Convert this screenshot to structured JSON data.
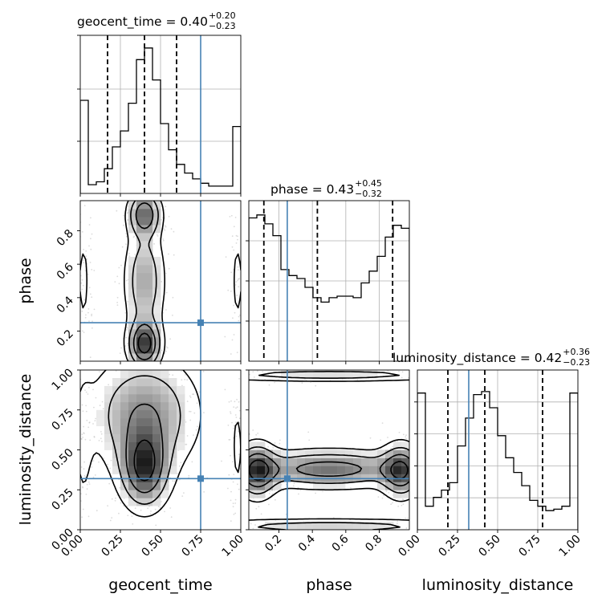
{
  "chart_data": {
    "type": "corner",
    "parameters": [
      "geocent_time",
      "phase",
      "luminosity_distance"
    ],
    "truths": {
      "geocent_time": 0.75,
      "phase": 0.25,
      "luminosity_distance": 0.32
    },
    "titles": {
      "geocent_time": {
        "prefix": "geocent_time = ",
        "median": "0.40",
        "plus": "+0.20",
        "minus": "−0.23"
      },
      "phase": {
        "prefix": "phase = ",
        "median": "0.43",
        "plus": "+0.45",
        "minus": "−0.32"
      },
      "luminosity_distance": {
        "prefix": "luminosity_distance = ",
        "median": "0.42",
        "plus": "+0.36",
        "minus": "−0.23"
      }
    },
    "quantiles": {
      "geocent_time": [
        0.17,
        0.4,
        0.6
      ],
      "phase": [
        0.11,
        0.43,
        0.88
      ],
      "luminosity_distance": [
        0.19,
        0.42,
        0.78
      ]
    },
    "ranges": {
      "geocent_time": [
        0,
        1
      ],
      "phase": [
        0.02,
        0.98
      ],
      "luminosity_distance": [
        0,
        1
      ]
    },
    "hist_geocent_time": [
      0.64,
      0.06,
      0.08,
      0.17,
      0.32,
      0.43,
      0.62,
      0.92,
      1.0,
      0.78,
      0.48,
      0.3,
      0.2,
      0.14,
      0.1,
      0.07,
      0.05,
      0.05,
      0.05,
      0.46
    ],
    "hist_phase": [
      0.97,
      0.99,
      0.93,
      0.85,
      0.62,
      0.58,
      0.56,
      0.5,
      0.43,
      0.4,
      0.43,
      0.44,
      0.44,
      0.43,
      0.53,
      0.61,
      0.71,
      0.84,
      0.92,
      0.9
    ],
    "hist_luminosity_distance": [
      0.93,
      0.16,
      0.22,
      0.27,
      0.32,
      0.57,
      0.76,
      0.92,
      0.94,
      0.83,
      0.64,
      0.49,
      0.39,
      0.3,
      0.2,
      0.16,
      0.13,
      0.14,
      0.16,
      0.93
    ],
    "ticks": {
      "geocent_time": [
        "0.00",
        "0.25",
        "0.50",
        "0.75",
        "1.00"
      ],
      "phase": [
        "0.2",
        "0.4",
        "0.6",
        "0.8"
      ],
      "luminosity_distance": [
        "0.00",
        "0.25",
        "0.50",
        "0.75",
        "1.00"
      ]
    }
  },
  "colors": {
    "truth": "#4682b4",
    "ink": "#000000",
    "grid": "#b0b0b0"
  }
}
